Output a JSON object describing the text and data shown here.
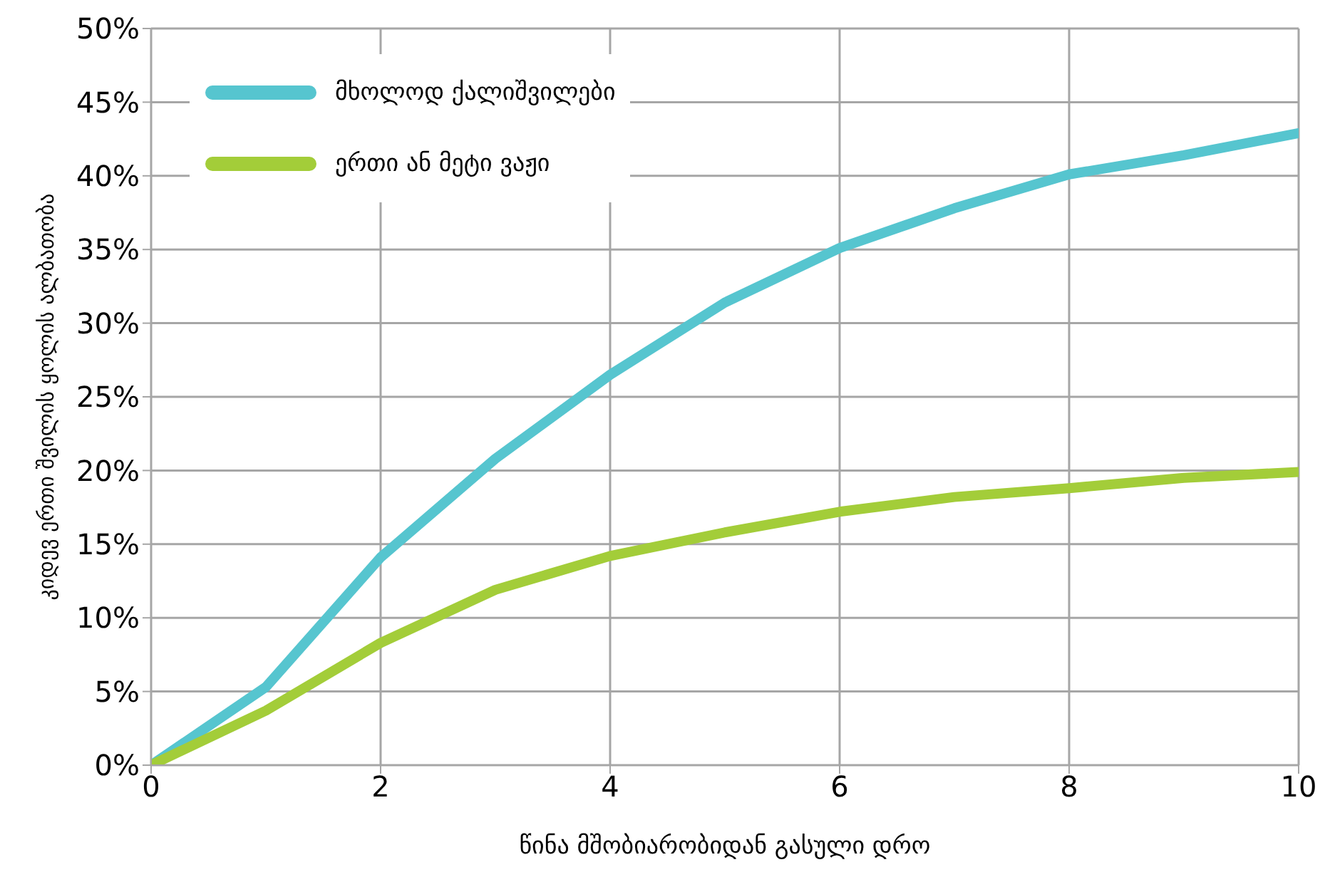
{
  "chart_data": {
    "type": "line",
    "xlabel": "წინა მშობიარობიდან გასული დრო",
    "ylabel": "კიდევ ერთი შვილის ყოლის ალბათობა",
    "x": [
      0,
      1,
      2,
      3,
      4,
      5,
      6,
      7,
      8,
      9,
      10
    ],
    "series": [
      {
        "name": "მხოლოდ ქალიშვილები",
        "color": "#56c5cf",
        "values": [
          0,
          5.3,
          14.1,
          20.8,
          26.5,
          31.4,
          35.1,
          37.8,
          40.1,
          41.4,
          42.9
        ]
      },
      {
        "name": "ერთი ან მეტი ვაჟი",
        "color": "#a3cd39",
        "values": [
          0,
          3.7,
          8.3,
          11.9,
          14.2,
          15.8,
          17.2,
          18.2,
          18.8,
          19.5,
          19.9
        ]
      }
    ],
    "xlim": [
      0,
      10
    ],
    "xticks": [
      0,
      2,
      4,
      6,
      8,
      10
    ],
    "ylim": [
      0,
      50
    ],
    "yticks": [
      {
        "value": 0,
        "label": "0%"
      },
      {
        "value": 5,
        "label": "5%"
      },
      {
        "value": 10,
        "label": "10%"
      },
      {
        "value": 15,
        "label": "15%"
      },
      {
        "value": 20,
        "label": "20%"
      },
      {
        "value": 25,
        "label": "25%"
      },
      {
        "value": 30,
        "label": "30%"
      },
      {
        "value": 35,
        "label": "35%"
      },
      {
        "value": 40,
        "label": "40%"
      },
      {
        "value": 45,
        "label": "45%"
      },
      {
        "value": 50,
        "label": "50%"
      }
    ],
    "grid": true,
    "legend": "top left",
    "marker": "none",
    "line_style": "solid"
  }
}
